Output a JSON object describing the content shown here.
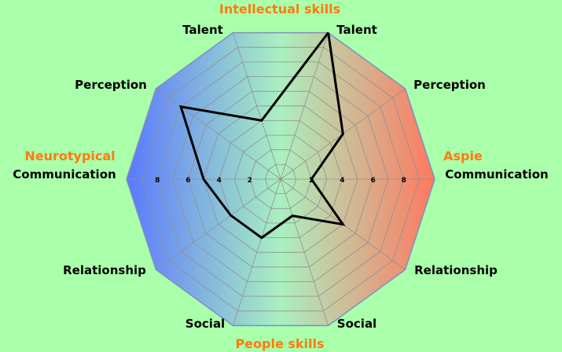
{
  "chart_data": {
    "type": "radar",
    "categories": [
      "Talent",
      "Perception",
      "Communication",
      "Relationship",
      "Social",
      "Social",
      "Relationship",
      "Communication",
      "Perception",
      "Talent"
    ],
    "series": [
      {
        "values": [
          10,
          5,
          2,
          5,
          2.5,
          4,
          4,
          5,
          8,
          4
        ]
      }
    ],
    "range": [
      0,
      10
    ],
    "tick_labels_right": [
      "2",
      "4",
      "6",
      "8"
    ],
    "tick_labels_left": [
      "8",
      "6",
      "4",
      "2"
    ],
    "headers": {
      "top": "Intellectual skills",
      "bottom": "People skills",
      "left": "Neurotypical",
      "right": "Aspie"
    },
    "colors": {
      "background": "#aaffaa",
      "left_gradient": "#5a78ff",
      "center_gradient": "#aaf0c0",
      "right_gradient": "#ff7860",
      "grid": "#909090",
      "series_line": "#000000",
      "header_text": "#ff7a10"
    },
    "grid": true
  }
}
